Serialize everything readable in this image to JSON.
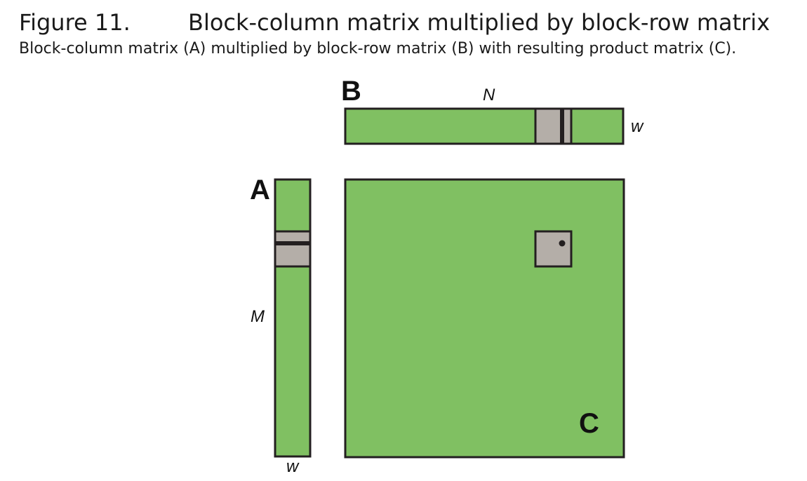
{
  "figure": {
    "number": "Figure 11.",
    "title": "Block-column matrix multiplied by block-row matrix",
    "caption": "Block-column matrix (A) multiplied by block-row matrix (B) with resulting product matrix (C)."
  },
  "labels": {
    "matrix_a": "A",
    "matrix_b": "B",
    "matrix_c": "C",
    "dim_n": "N",
    "dim_m": "M",
    "dim_w_b": "w",
    "dim_w_a": "w"
  },
  "colors": {
    "matrix_fill": "#80c062",
    "block_fill": "#b4aea8",
    "stroke": "#231f20"
  }
}
